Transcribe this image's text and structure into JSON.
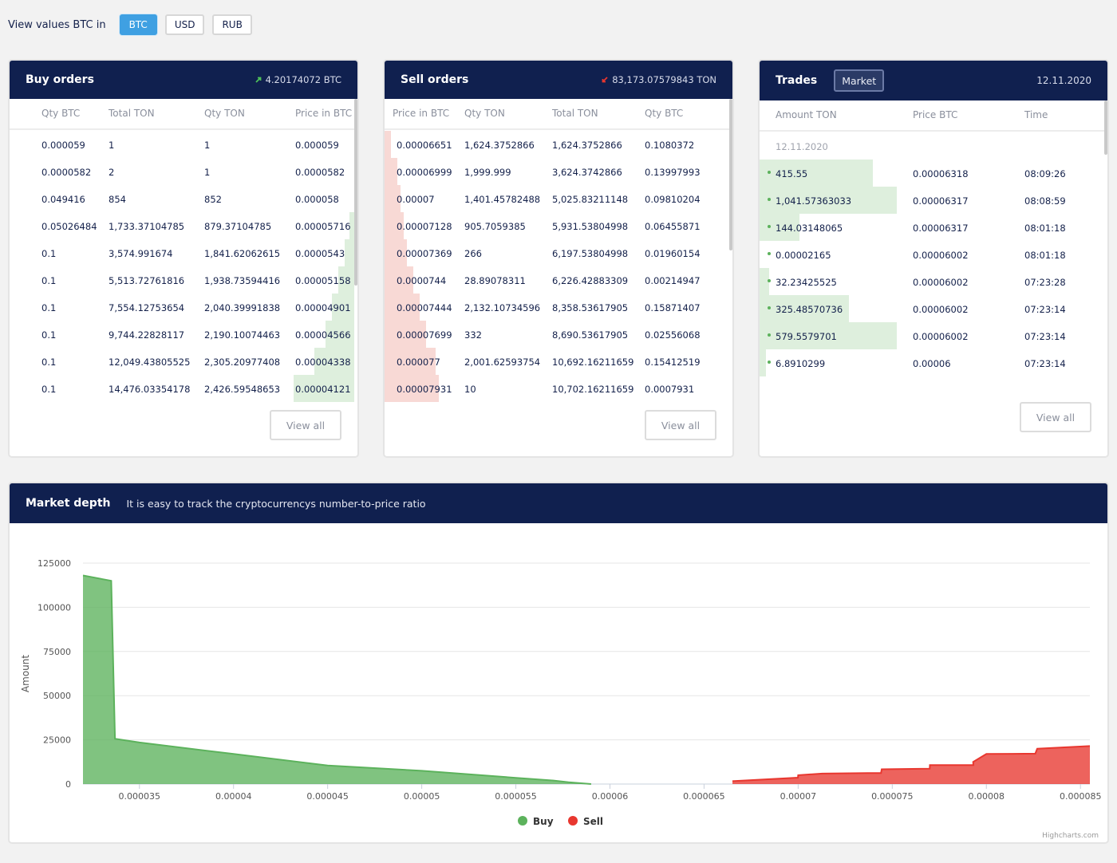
{
  "currency": {
    "label": "View values BTC in",
    "options": [
      "BTC",
      "USD",
      "RUB"
    ],
    "selected": "BTC"
  },
  "buy_orders": {
    "title": "Buy orders",
    "summary": "4.20174072 BTC",
    "columns": [
      "Qty BTC",
      "Total TON",
      "Qty TON",
      "Price in BTC"
    ],
    "rows": [
      [
        "0.000059",
        "1",
        "1",
        "0.000059"
      ],
      [
        "0.0000582",
        "2",
        "1",
        "0.0000582"
      ],
      [
        "0.049416",
        "854",
        "852",
        "0.000058"
      ],
      [
        "0.05026484",
        "1,733.37104785",
        "879.37104785",
        "0.00005716"
      ],
      [
        "0.1",
        "3,574.991674",
        "1,841.62062615",
        "0.0000543"
      ],
      [
        "0.1",
        "5,513.72761816",
        "1,938.73594416",
        "0.00005158"
      ],
      [
        "0.1",
        "7,554.12753654",
        "2,040.39991838",
        "0.00004901"
      ],
      [
        "0.1",
        "9,744.22828117",
        "2,190.10074463",
        "0.00004566"
      ],
      [
        "0.1",
        "12,049.43805525",
        "2,305.20977408",
        "0.00004338"
      ],
      [
        "0.1",
        "14,476.03354178",
        "2,426.59548653",
        "0.00004121"
      ]
    ],
    "view_all": "View all"
  },
  "sell_orders": {
    "title": "Sell orders",
    "summary": "83,173.07579843 TON",
    "columns": [
      "Price in BTC",
      "Qty TON",
      "Total TON",
      "Qty BTC"
    ],
    "rows": [
      [
        "0.00006651",
        "1,624.3752866",
        "1,624.3752866",
        "0.1080372"
      ],
      [
        "0.00006999",
        "1,999.999",
        "3,624.3742866",
        "0.13997993"
      ],
      [
        "0.00007",
        "1,401.45782488",
        "5,025.83211148",
        "0.09810204"
      ],
      [
        "0.00007128",
        "905.7059385",
        "5,931.53804998",
        "0.06455871"
      ],
      [
        "0.00007369",
        "266",
        "6,197.53804998",
        "0.01960154"
      ],
      [
        "0.0000744",
        "28.89078311",
        "6,226.42883309",
        "0.00214947"
      ],
      [
        "0.00007444",
        "2,132.10734596",
        "8,358.53617905",
        "0.15871407"
      ],
      [
        "0.00007699",
        "332",
        "8,690.53617905",
        "0.02556068"
      ],
      [
        "0.000077",
        "2,001.62593754",
        "10,692.16211659",
        "0.15412519"
      ],
      [
        "0.00007931",
        "10",
        "10,702.16211659",
        "0.0007931"
      ]
    ],
    "view_all": "View all"
  },
  "trades": {
    "title": "Trades",
    "market_button": "Market",
    "date": "12.11.2020",
    "columns": [
      "Amount TON",
      "Price BTC",
      "Time"
    ],
    "group_date": "12.11.2020",
    "rows": [
      [
        "415.55",
        "0.00006318",
        "08:09:26"
      ],
      [
        "1,041.57363033",
        "0.00006317",
        "08:08:59"
      ],
      [
        "144.03148065",
        "0.00006317",
        "08:01:18"
      ],
      [
        "0.00002165",
        "0.00006002",
        "08:01:18"
      ],
      [
        "32.23425525",
        "0.00006002",
        "07:23:28"
      ],
      [
        "325.48570736",
        "0.00006002",
        "07:23:14"
      ],
      [
        "579.5579701",
        "0.00006002",
        "07:23:14"
      ],
      [
        "6.8910299",
        "0.00006",
        "07:23:14"
      ]
    ],
    "view_all": "View all"
  },
  "market_depth": {
    "title": "Market depth",
    "subtitle": "It is easy to track the cryptocurrencys number-to-price ratio",
    "credit": "Highcharts.com"
  },
  "colors": {
    "header": "#10204f",
    "buy": "#5cb25c",
    "sell": "#e8372f",
    "accent": "#3fa0e2"
  },
  "chart_data": {
    "type": "area",
    "title": "",
    "xlabel": "",
    "ylabel": "Amount",
    "xlim": [
      3.2e-05,
      8.55e-05
    ],
    "ylim": [
      0,
      125000
    ],
    "x_ticks": [
      "0.000035",
      "0.00004",
      "0.000045",
      "0.00005",
      "0.000055",
      "0.00006",
      "0.000065",
      "0.00007",
      "0.000075",
      "0.00008",
      "0.000085"
    ],
    "x_tick_values": [
      3.5e-05,
      4e-05,
      4.5e-05,
      5e-05,
      5.5e-05,
      6e-05,
      6.5e-05,
      7e-05,
      7.5e-05,
      8e-05,
      8.5e-05
    ],
    "y_ticks": [
      "0",
      "25000",
      "50000",
      "75000",
      "100000",
      "125000"
    ],
    "y_tick_values": [
      0,
      25000,
      50000,
      75000,
      100000,
      125000
    ],
    "grid": true,
    "legend": "bottom-center",
    "series": [
      {
        "name": "Buy",
        "color": "#5cb25c",
        "points": [
          [
            3.2e-05,
            118000
          ],
          [
            3.35e-05,
            115000
          ],
          [
            3.37e-05,
            25600
          ],
          [
            3.5e-05,
            23500
          ],
          [
            4e-05,
            17000
          ],
          [
            4.5e-05,
            10500
          ],
          [
            5e-05,
            7500
          ],
          [
            5.5e-05,
            3500
          ],
          [
            5.7e-05,
            2000
          ],
          [
            5.78e-05,
            1000
          ],
          [
            5.9e-05,
            0
          ]
        ]
      },
      {
        "name": "Sell",
        "color": "#e8372f",
        "points": [
          [
            6.651e-05,
            1624
          ],
          [
            6.999e-05,
            3624
          ],
          [
            7e-05,
            5026
          ],
          [
            7.128e-05,
            5932
          ],
          [
            7.369e-05,
            6198
          ],
          [
            7.44e-05,
            6226
          ],
          [
            7.444e-05,
            8359
          ],
          [
            7.699e-05,
            8691
          ],
          [
            7.7e-05,
            10692
          ],
          [
            7.931e-05,
            10702
          ],
          [
            7.93e-05,
            12500
          ],
          [
            8e-05,
            17000
          ],
          [
            8.26e-05,
            17200
          ],
          [
            8.27e-05,
            20000
          ],
          [
            8.55e-05,
            21500
          ]
        ]
      }
    ]
  }
}
